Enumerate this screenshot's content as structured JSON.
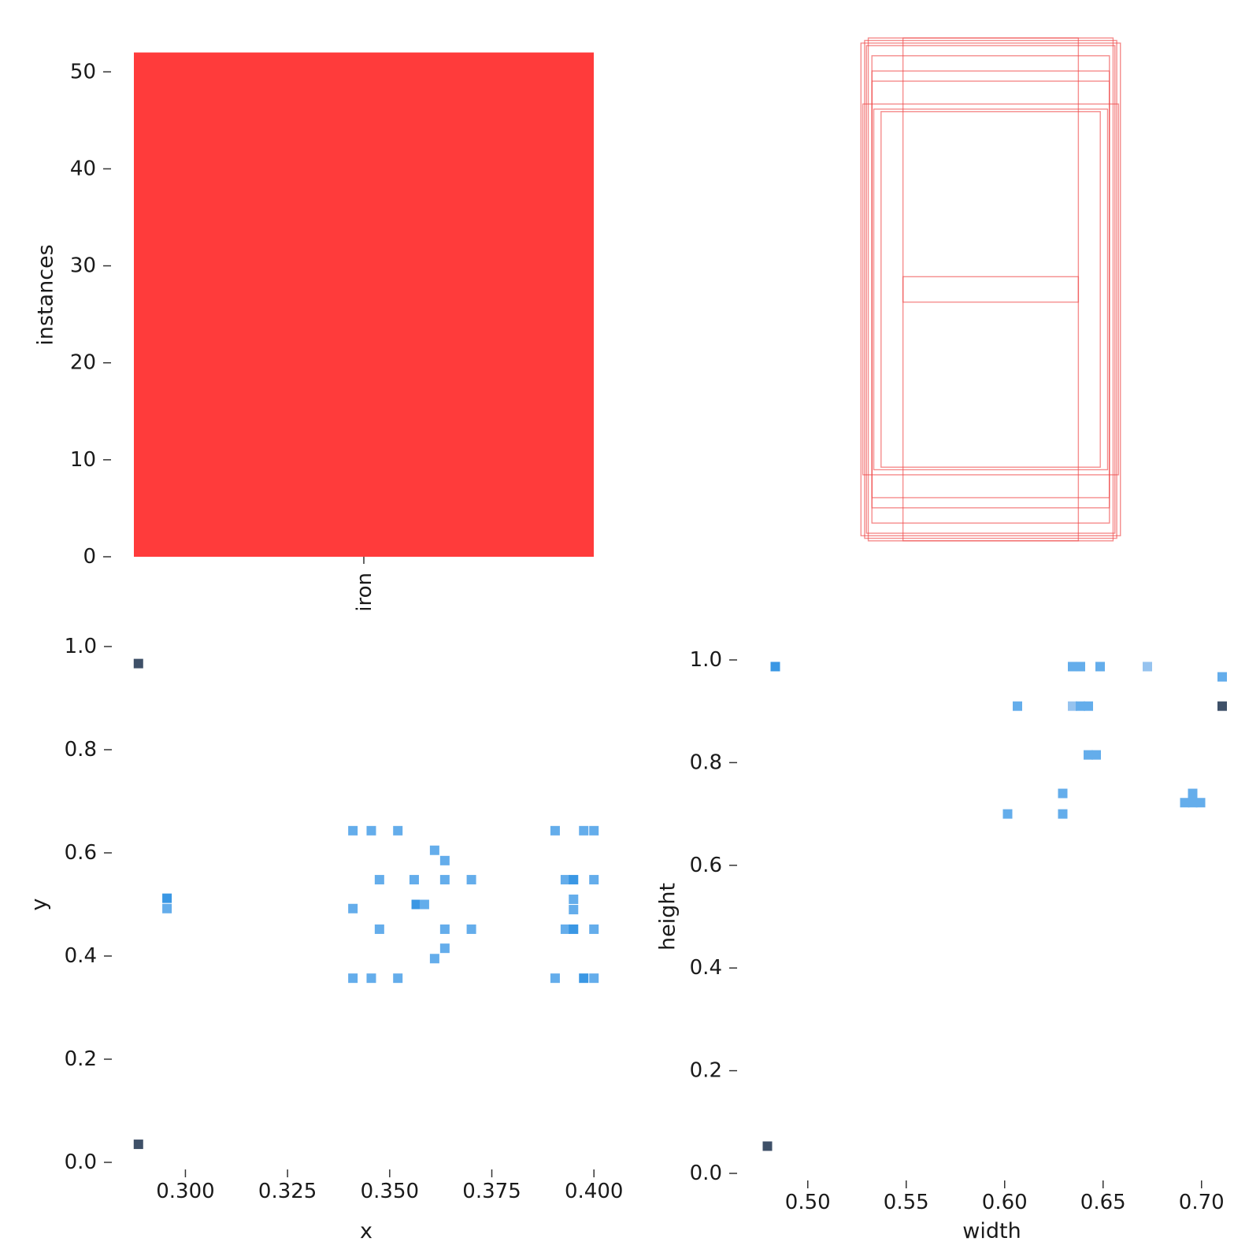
{
  "colors": {
    "bar": "#ff3b3b",
    "box": "#f05050",
    "hist_light": "#64adeb",
    "hist_mid": "#3a97e4",
    "hist_pale": "#96c3ef",
    "hist_dark": "#3e5068"
  },
  "chart_data": [
    {
      "id": "instances",
      "type": "bar",
      "categories": [
        "iron"
      ],
      "values": [
        52
      ],
      "ylabel": "instances",
      "xlabel": "",
      "ylim": [
        0,
        54
      ],
      "yticks": [
        "0",
        "10",
        "20",
        "30",
        "40",
        "50"
      ],
      "grid": false
    },
    {
      "id": "boxes",
      "type": "boxes",
      "description_units": "normalized box [x_center, y_center, width, height]",
      "boxes": [
        [
          0.5,
          0.5,
          0.71,
          0.97
        ],
        [
          0.5,
          0.5,
          0.69,
          0.98
        ],
        [
          0.5,
          0.5,
          0.65,
          0.92
        ],
        [
          0.5,
          0.5,
          0.65,
          0.86
        ],
        [
          0.5,
          0.5,
          0.64,
          0.71
        ],
        [
          0.5,
          0.5,
          0.6,
          0.7
        ],
        [
          0.5,
          0.5,
          0.7,
          0.73
        ],
        [
          0.5,
          0.5,
          0.68,
          0.96
        ],
        [
          0.5,
          0.5,
          0.48,
          0.99
        ],
        [
          0.5,
          0.5,
          0.48,
          0.05
        ],
        [
          0.5,
          0.5,
          0.65,
          0.82
        ],
        [
          0.5,
          0.5,
          0.67,
          0.99
        ]
      ]
    },
    {
      "id": "xy",
      "type": "heatmap",
      "xlabel": "x",
      "ylabel": "y",
      "xlim": [
        0.287,
        0.4015
      ],
      "ylim": [
        0.0,
        1.0
      ],
      "xticks": [
        "0.300",
        "0.325",
        "0.350",
        "0.375",
        "0.400"
      ],
      "yticks": [
        "0.0",
        "0.2",
        "0.4",
        "0.6",
        "0.8",
        "1.0"
      ],
      "cells": [
        {
          "x": 0.2885,
          "y": 0.967,
          "level": "dark"
        },
        {
          "x": 0.2885,
          "y": 0.035,
          "level": "dark"
        },
        {
          "x": 0.2955,
          "y": 0.512,
          "level": "mid"
        },
        {
          "x": 0.2955,
          "y": 0.492,
          "level": "light"
        },
        {
          "x": 0.341,
          "y": 0.643,
          "level": "light"
        },
        {
          "x": 0.3455,
          "y": 0.643,
          "level": "light"
        },
        {
          "x": 0.352,
          "y": 0.643,
          "level": "light"
        },
        {
          "x": 0.341,
          "y": 0.357,
          "level": "light"
        },
        {
          "x": 0.3455,
          "y": 0.357,
          "level": "light"
        },
        {
          "x": 0.352,
          "y": 0.357,
          "level": "light"
        },
        {
          "x": 0.3475,
          "y": 0.548,
          "level": "light"
        },
        {
          "x": 0.3475,
          "y": 0.452,
          "level": "light"
        },
        {
          "x": 0.341,
          "y": 0.492,
          "level": "light"
        },
        {
          "x": 0.356,
          "y": 0.548,
          "level": "light"
        },
        {
          "x": 0.3565,
          "y": 0.5,
          "level": "mid"
        },
        {
          "x": 0.3585,
          "y": 0.5,
          "level": "light"
        },
        {
          "x": 0.361,
          "y": 0.605,
          "level": "light"
        },
        {
          "x": 0.3635,
          "y": 0.585,
          "level": "light"
        },
        {
          "x": 0.3635,
          "y": 0.548,
          "level": "light"
        },
        {
          "x": 0.3635,
          "y": 0.452,
          "level": "light"
        },
        {
          "x": 0.3635,
          "y": 0.415,
          "level": "light"
        },
        {
          "x": 0.361,
          "y": 0.395,
          "level": "light"
        },
        {
          "x": 0.37,
          "y": 0.548,
          "level": "light"
        },
        {
          "x": 0.37,
          "y": 0.452,
          "level": "light"
        },
        {
          "x": 0.3905,
          "y": 0.643,
          "level": "light"
        },
        {
          "x": 0.3975,
          "y": 0.643,
          "level": "light"
        },
        {
          "x": 0.4,
          "y": 0.643,
          "level": "light"
        },
        {
          "x": 0.3905,
          "y": 0.357,
          "level": "light"
        },
        {
          "x": 0.3975,
          "y": 0.357,
          "level": "mid"
        },
        {
          "x": 0.4,
          "y": 0.357,
          "level": "light"
        },
        {
          "x": 0.393,
          "y": 0.548,
          "level": "light"
        },
        {
          "x": 0.395,
          "y": 0.548,
          "level": "mid"
        },
        {
          "x": 0.4,
          "y": 0.548,
          "level": "light"
        },
        {
          "x": 0.393,
          "y": 0.452,
          "level": "light"
        },
        {
          "x": 0.395,
          "y": 0.452,
          "level": "mid"
        },
        {
          "x": 0.4,
          "y": 0.452,
          "level": "light"
        },
        {
          "x": 0.395,
          "y": 0.51,
          "level": "light"
        },
        {
          "x": 0.395,
          "y": 0.49,
          "level": "light"
        }
      ]
    },
    {
      "id": "wh",
      "type": "heatmap",
      "xlabel": "width",
      "ylabel": "height",
      "xlim": [
        0.4745,
        0.7125
      ],
      "ylim": [
        0.0,
        1.0
      ],
      "xticks": [
        "0.50",
        "0.55",
        "0.60",
        "0.65",
        "0.70"
      ],
      "yticks": [
        "0.0",
        "0.2",
        "0.4",
        "0.6",
        "0.8",
        "1.0"
      ],
      "cells": [
        {
          "x": 0.4835,
          "y": 0.987,
          "level": "mid"
        },
        {
          "x": 0.4795,
          "y": 0.053,
          "level": "dark"
        },
        {
          "x": 0.6345,
          "y": 0.987,
          "level": "light"
        },
        {
          "x": 0.6385,
          "y": 0.987,
          "level": "light"
        },
        {
          "x": 0.6485,
          "y": 0.987,
          "level": "light"
        },
        {
          "x": 0.6725,
          "y": 0.987,
          "level": "pale"
        },
        {
          "x": 0.7105,
          "y": 0.967,
          "level": "light"
        },
        {
          "x": 0.6065,
          "y": 0.91,
          "level": "light"
        },
        {
          "x": 0.6345,
          "y": 0.91,
          "level": "pale"
        },
        {
          "x": 0.6385,
          "y": 0.91,
          "level": "light"
        },
        {
          "x": 0.6425,
          "y": 0.91,
          "level": "light"
        },
        {
          "x": 0.7105,
          "y": 0.91,
          "level": "dark"
        },
        {
          "x": 0.6425,
          "y": 0.815,
          "level": "light"
        },
        {
          "x": 0.6465,
          "y": 0.815,
          "level": "light"
        },
        {
          "x": 0.6295,
          "y": 0.74,
          "level": "light"
        },
        {
          "x": 0.6015,
          "y": 0.7,
          "level": "light"
        },
        {
          "x": 0.6295,
          "y": 0.7,
          "level": "light"
        },
        {
          "x": 0.6955,
          "y": 0.74,
          "level": "light"
        },
        {
          "x": 0.6915,
          "y": 0.722,
          "level": "light"
        },
        {
          "x": 0.6955,
          "y": 0.722,
          "level": "light"
        },
        {
          "x": 0.6995,
          "y": 0.722,
          "level": "light"
        }
      ]
    }
  ]
}
